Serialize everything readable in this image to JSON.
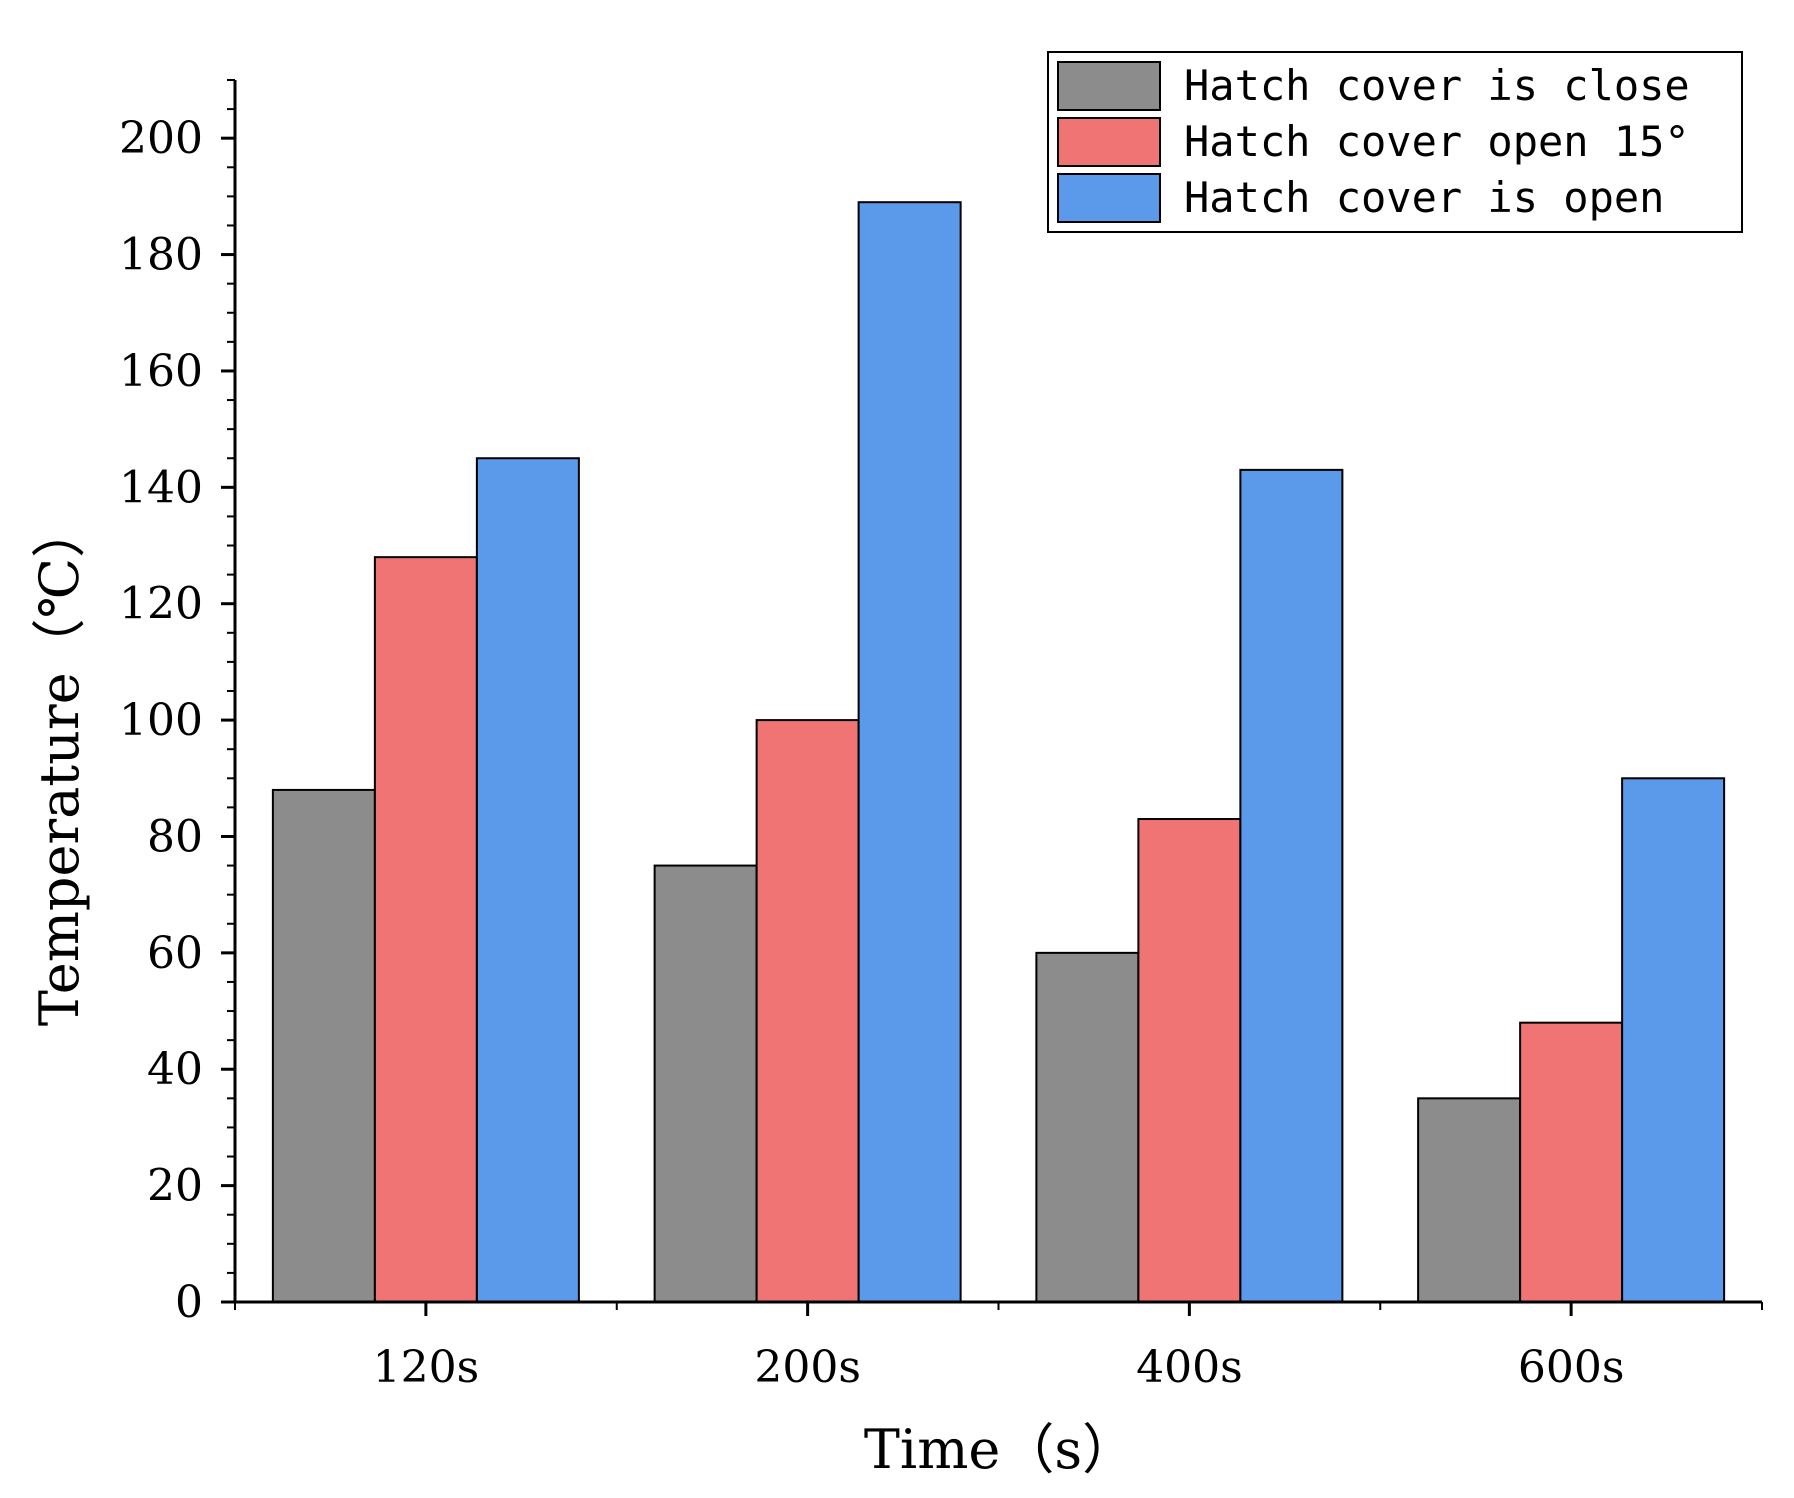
{
  "chart_data": {
    "type": "bar",
    "categories": [
      "120s",
      "200s",
      "400s",
      "600s"
    ],
    "series": [
      {
        "name": "Hatch cover is close",
        "color": "#8c8c8c",
        "values": [
          88,
          75,
          60,
          35
        ]
      },
      {
        "name": "Hatch cover open 15°",
        "color": "#f07474",
        "values": [
          128,
          100,
          83,
          48
        ]
      },
      {
        "name": "Hatch cover is open",
        "color": "#5b99ea",
        "values": [
          145,
          189,
          143,
          90
        ]
      }
    ],
    "xlabel": "Time（s）",
    "ylabel": "Temperature（℃）",
    "ylim": [
      0,
      210
    ],
    "yticks": [
      0,
      20,
      40,
      60,
      80,
      100,
      120,
      140,
      160,
      180,
      200
    ],
    "y_minor_step": 5,
    "grid": false,
    "legend_position": "top-right"
  }
}
